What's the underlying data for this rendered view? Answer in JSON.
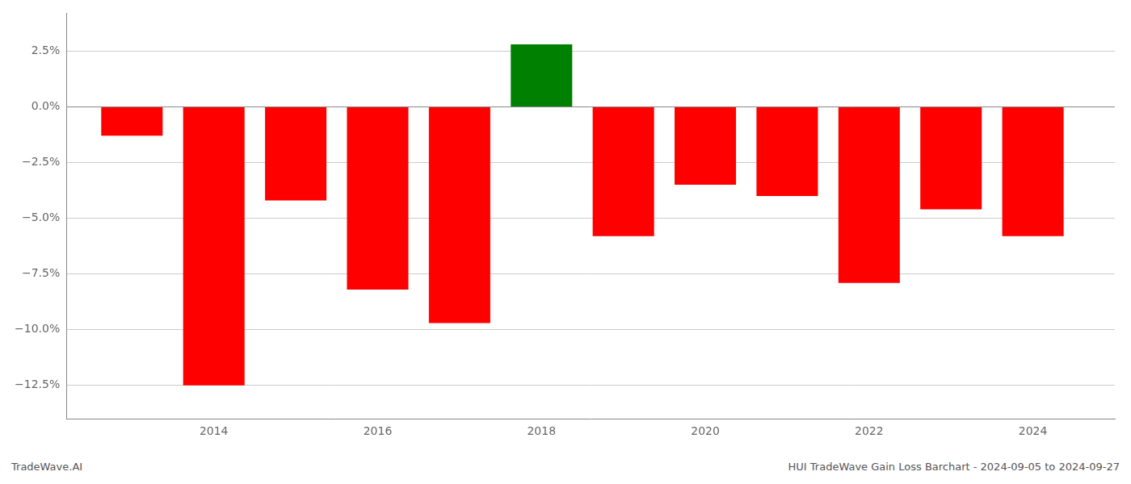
{
  "chart_data": {
    "type": "bar",
    "x": [
      2013,
      2014,
      2015,
      2016,
      2017,
      2018,
      2019,
      2020,
      2021,
      2022,
      2023,
      2024
    ],
    "values": [
      -1.3,
      -12.5,
      -4.2,
      -8.2,
      -9.7,
      2.8,
      -5.8,
      -3.5,
      -4.0,
      -7.9,
      -4.6,
      -5.8
    ],
    "colors": [
      "#ff0000",
      "#ff0000",
      "#ff0000",
      "#ff0000",
      "#ff0000",
      "#008000",
      "#ff0000",
      "#ff0000",
      "#ff0000",
      "#ff0000",
      "#ff0000",
      "#ff0000"
    ],
    "xlim": [
      2012.2,
      2025.0
    ],
    "xticks": [
      2014,
      2016,
      2018,
      2020,
      2022,
      2024
    ],
    "ylim": [
      -14.0,
      4.2
    ],
    "yticks": [
      {
        "value": 2.5,
        "label": "2.5%"
      },
      {
        "value": 0.0,
        "label": "0.0%"
      },
      {
        "value": -2.5,
        "label": "−2.5%"
      },
      {
        "value": -5.0,
        "label": "−5.0%"
      },
      {
        "value": -7.5,
        "label": "−7.5%"
      },
      {
        "value": -10.0,
        "label": "−10.0%"
      },
      {
        "value": -12.5,
        "label": "−12.5%"
      }
    ],
    "grid": "y",
    "annotations": [
      "TradeWave.AI",
      "HUI TradeWave Gain Loss Barchart - 2024-09-05 to 2024-09-27"
    ]
  }
}
